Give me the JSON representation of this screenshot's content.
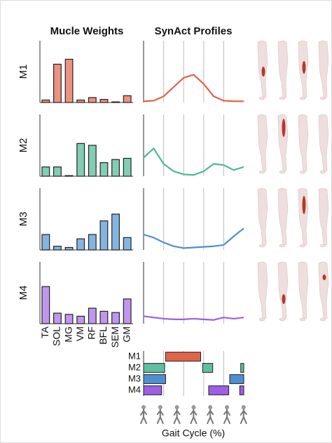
{
  "chart_data": [
    {
      "type": "bar",
      "title": "Mucle Weights",
      "categories": [
        "TA",
        "SOL",
        "MG",
        "VM",
        "RF",
        "BFL",
        "SEM",
        "GM"
      ],
      "ylim": [
        0,
        1
      ],
      "series": [
        {
          "name": "M1",
          "color": "#e8806a",
          "values": [
            0.04,
            0.62,
            0.7,
            0.04,
            0.08,
            0.05,
            0.01,
            0.11
          ]
        },
        {
          "name": "M2",
          "color": "#6cc6a8",
          "values": [
            0.15,
            0.15,
            0.01,
            0.53,
            0.5,
            0.22,
            0.27,
            0.29
          ]
        },
        {
          "name": "M3",
          "color": "#6fa8dc",
          "values": [
            0.25,
            0.06,
            0.04,
            0.18,
            0.25,
            0.47,
            0.58,
            0.2
          ]
        },
        {
          "name": "M4",
          "color": "#b585ec",
          "values": [
            0.6,
            0.17,
            0.15,
            0.12,
            0.25,
            0.2,
            0.18,
            0.4
          ]
        }
      ]
    },
    {
      "type": "line",
      "title": "SynAct Profiles",
      "x": [
        0,
        10,
        20,
        30,
        40,
        50,
        60,
        70,
        80,
        90,
        100
      ],
      "xlim": [
        0,
        100
      ],
      "ylim": [
        0,
        1
      ],
      "xticks": [
        20,
        40,
        60,
        80
      ],
      "grid": true,
      "series": [
        {
          "color": "#e0654a",
          "values": [
            0.02,
            0.03,
            0.1,
            0.25,
            0.4,
            0.45,
            0.3,
            0.1,
            0.03,
            0.02,
            0.02
          ]
        },
        {
          "color": "#4fb893",
          "values": [
            0.3,
            0.45,
            0.2,
            0.08,
            0.03,
            0.02,
            0.08,
            0.2,
            0.18,
            0.1,
            0.15
          ]
        },
        {
          "color": "#4f8fd0",
          "values": [
            0.25,
            0.2,
            0.12,
            0.06,
            0.03,
            0.04,
            0.05,
            0.06,
            0.08,
            0.22,
            0.35
          ]
        },
        {
          "color": "#9e5ee6",
          "values": [
            0.12,
            0.1,
            0.08,
            0.07,
            0.07,
            0.08,
            0.07,
            0.06,
            0.1,
            0.08,
            0.1
          ]
        }
      ]
    },
    {
      "type": "timeline",
      "xlabel": "Gait Cycle (%)",
      "categories": [
        "M1",
        "M2",
        "M3",
        "M4"
      ],
      "colors": [
        "#e0654a",
        "#5fbfa0",
        "#4f8fd0",
        "#9e5ee6"
      ],
      "xlim": [
        0,
        100
      ],
      "xticks": [
        20,
        40,
        60,
        80
      ],
      "grid": true,
      "intervals": [
        [
          [
            22,
            57
          ]
        ],
        [
          [
            0,
            21
          ],
          [
            59,
            69
          ],
          [
            97,
            100
          ]
        ],
        [
          [
            0,
            22
          ],
          [
            86,
            100
          ]
        ],
        [
          [
            0,
            18
          ],
          [
            65,
            85
          ],
          [
            96,
            100
          ]
        ]
      ]
    }
  ]
}
